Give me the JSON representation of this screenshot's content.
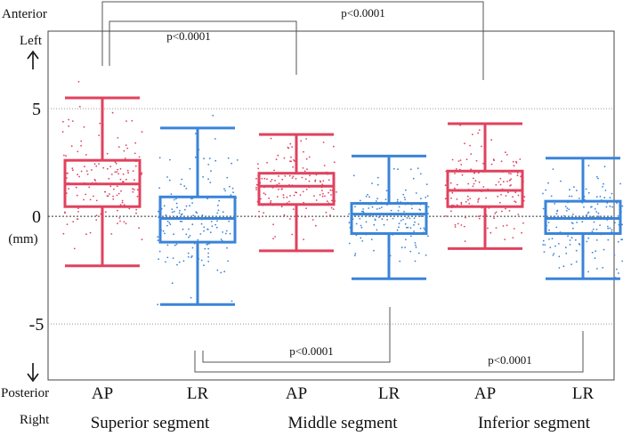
{
  "chart_data": {
    "type": "boxplot",
    "title": "",
    "ylabel": "(mm)",
    "y_direction_labels": {
      "top": [
        "Anterior",
        "Left"
      ],
      "bottom": [
        "Posterior",
        "Right"
      ]
    },
    "ylim": [
      -7.6,
      8.6
    ],
    "yticks": [
      "5",
      "0",
      "-5"
    ],
    "ytick_values": [
      5,
      0,
      -5
    ],
    "series_colors": {
      "AP": "#e0425e",
      "LR": "#3a84d9"
    },
    "groups": [
      {
        "segment": "Superior segment",
        "boxes": [
          {
            "category": "AP",
            "whisker_low": -2.3,
            "q1": 0.45,
            "median": 1.5,
            "q3": 2.6,
            "whisker_high": 5.5
          },
          {
            "category": "LR",
            "whisker_low": -4.1,
            "q1": -1.2,
            "median": -0.1,
            "q3": 0.9,
            "whisker_high": 4.1
          }
        ]
      },
      {
        "segment": "Middle segment",
        "boxes": [
          {
            "category": "AP",
            "whisker_low": -1.6,
            "q1": 0.55,
            "median": 1.4,
            "q3": 2.0,
            "whisker_high": 3.8
          },
          {
            "category": "LR",
            "whisker_low": -2.9,
            "q1": -0.8,
            "median": 0.1,
            "q3": 0.6,
            "whisker_high": 2.8
          }
        ]
      },
      {
        "segment": "Inferior segment",
        "boxes": [
          {
            "category": "AP",
            "whisker_low": -1.5,
            "q1": 0.45,
            "median": 1.2,
            "q3": 2.1,
            "whisker_high": 4.3
          },
          {
            "category": "LR",
            "whisker_low": -2.9,
            "q1": -0.8,
            "median": -0.1,
            "q3": 0.7,
            "whisker_high": 2.7
          }
        ]
      }
    ],
    "significance": [
      {
        "label": "p<0.0001",
        "compare": [
          "Superior segment AP",
          "Middle segment AP"
        ]
      },
      {
        "label": "p<0.0001",
        "compare": [
          "Superior segment AP",
          "Inferior segment AP"
        ]
      },
      {
        "label": "p<0.0001",
        "compare": [
          "Superior segment LR",
          "Middle segment LR"
        ]
      },
      {
        "label": "p<0.0001",
        "compare": [
          "Superior segment LR",
          "Inferior segment LR"
        ]
      }
    ],
    "grid": "dotted horizontal lines at 5, 0 and -5",
    "legend": "none"
  }
}
